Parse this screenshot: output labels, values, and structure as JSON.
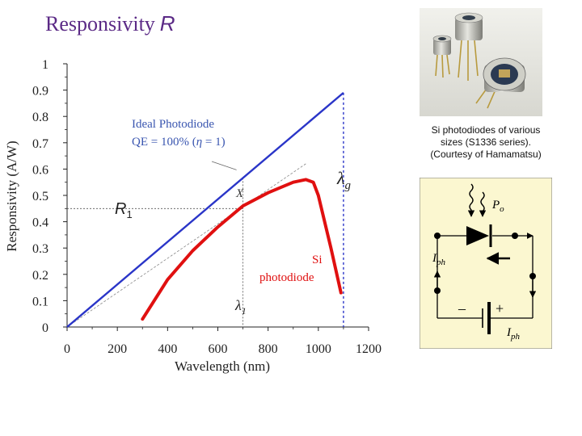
{
  "slide": {
    "title": "Responsivity",
    "title_symbol": "R"
  },
  "chart_data": {
    "type": "line",
    "title": "",
    "xlabel": "Wavelength (nm)",
    "ylabel": "Responsivity (A/W)",
    "xlim": [
      0,
      1200
    ],
    "ylim": [
      0,
      1
    ],
    "x_ticks": [
      "0",
      "200",
      "400",
      "600",
      "800",
      "1000",
      "1200"
    ],
    "y_ticks": [
      "0",
      "0.1",
      "0.2",
      "0.3",
      "0.4",
      "0.5",
      "0.6",
      "0.7",
      "0.8",
      "0.9",
      "1"
    ],
    "grid": false,
    "series": [
      {
        "name": "Ideal Photodiode",
        "color": "#2a35c8",
        "x": [
          0,
          1100
        ],
        "y": [
          0,
          0.89
        ]
      },
      {
        "name": "Si photodiode",
        "color": "#e01010",
        "x": [
          300,
          400,
          500,
          600,
          700,
          800,
          850,
          900,
          950,
          980,
          1000,
          1050,
          1090
        ],
        "y": [
          0.03,
          0.18,
          0.29,
          0.38,
          0.46,
          0.51,
          0.53,
          0.55,
          0.56,
          0.55,
          0.5,
          0.3,
          0.13
        ]
      }
    ],
    "reference_line": {
      "x": [
        0,
        950
      ],
      "y": [
        0,
        0.62
      ],
      "color": "#888888"
    },
    "guides": {
      "lambda_g_x": 1100,
      "lambda_1_x": 700,
      "R1_y": 0.45,
      "color": "#2a35c8"
    },
    "annotations": {
      "ideal_line1": "Ideal Photodiode",
      "ideal_line2_a": "QE = 100% (",
      "ideal_eta": "η",
      "ideal_line2_b": " = 1)",
      "x_marker": "X",
      "lambda": "λ",
      "lambda_g_sub": "g",
      "lambda_1_sub": "1",
      "R": "R",
      "R_sub": "1",
      "si_line1": "Si",
      "si_line2": "photodiode"
    }
  },
  "photo_caption": {
    "line1": "Si photodiodes of various",
    "line2": "sizes (S1336 series).",
    "line3": "(Courtesy of Hamamatsu)"
  },
  "circuit": {
    "Po": "P",
    "Po_sub": "o",
    "Iph": "I",
    "Iph_sub": "ph",
    "minus": "–",
    "plus": "+"
  }
}
